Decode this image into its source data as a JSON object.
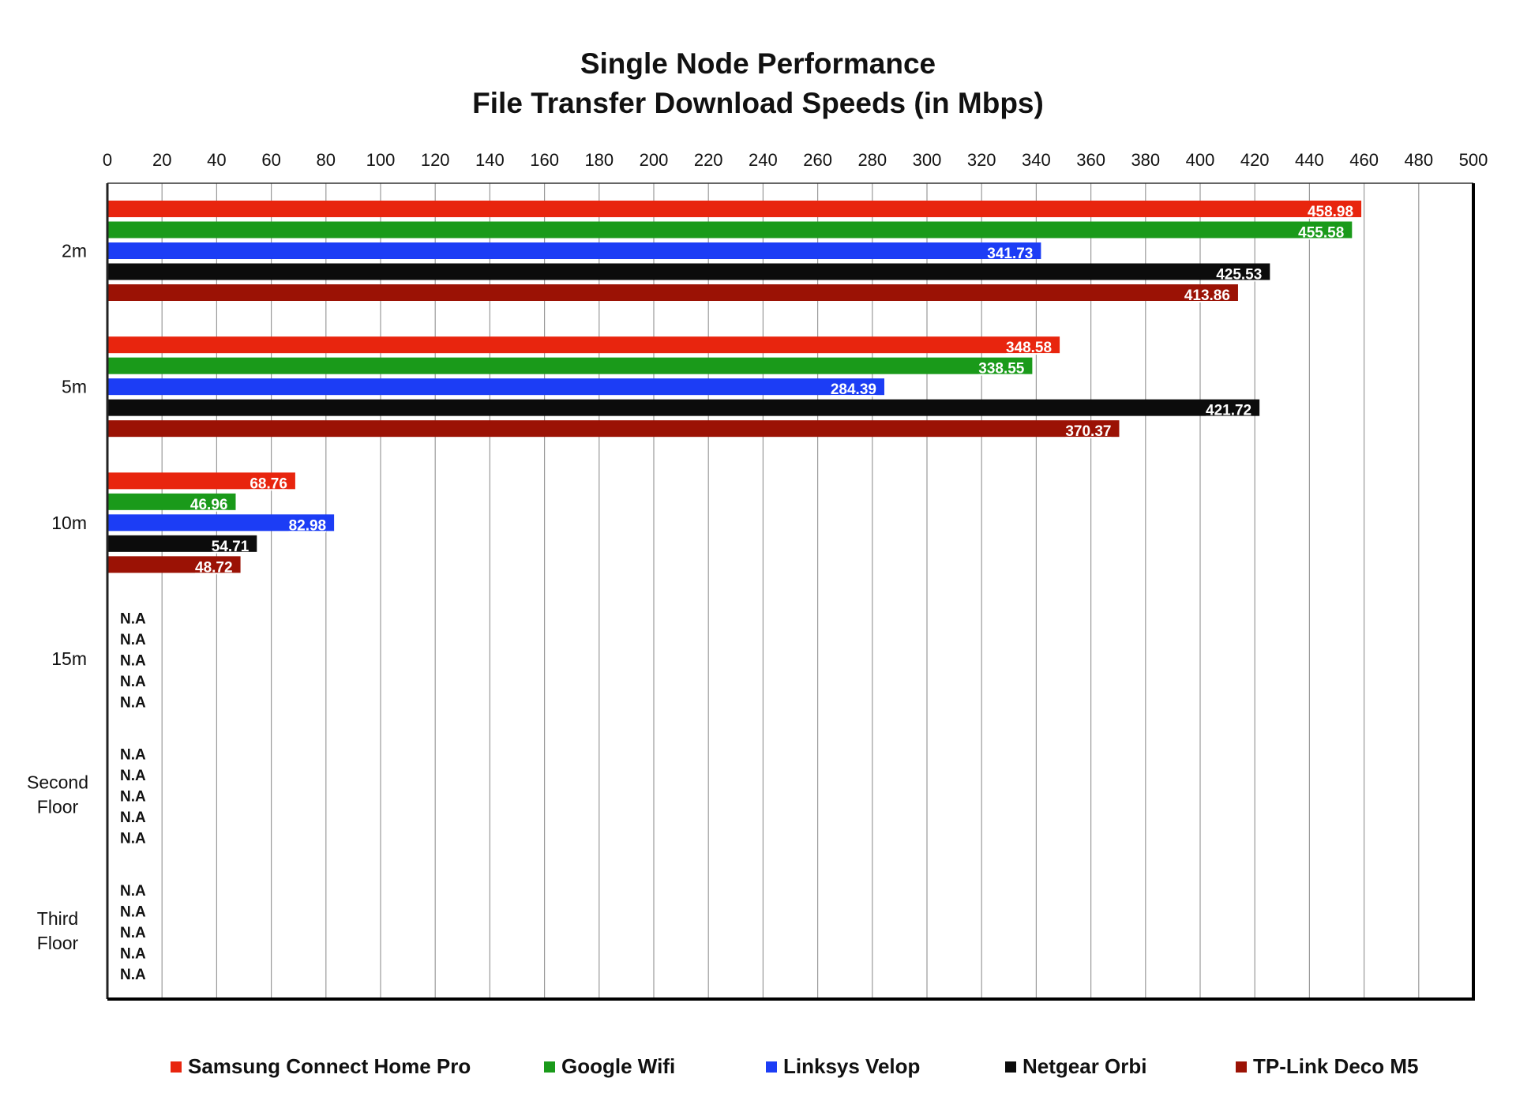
{
  "chart_data": {
    "type": "bar",
    "orientation": "horizontal",
    "title": "Single Node Performance",
    "subtitle": "File Transfer Download Speeds (in Mbps)",
    "xlim": [
      0,
      500
    ],
    "x_ticks": [
      "0",
      "20",
      "40",
      "60",
      "80",
      "100",
      "120",
      "140",
      "160",
      "180",
      "200",
      "220",
      "240",
      "260",
      "280",
      "300",
      "320",
      "340",
      "360",
      "380",
      "400",
      "420",
      "440",
      "460",
      "480",
      "500"
    ],
    "grid": "vertical",
    "legend_position": "bottom",
    "categories": [
      "2m",
      "5m",
      "10m",
      "15m",
      "Second Floor",
      "Third Floor"
    ],
    "category_labels": [
      [
        "2m"
      ],
      [
        "5m"
      ],
      [
        "10m"
      ],
      [
        "15m"
      ],
      [
        "Second",
        "Floor"
      ],
      [
        "Third",
        "Floor"
      ]
    ],
    "missing_label": "N.A",
    "series": [
      {
        "name": "Samsung Connect Home Pro",
        "color": "#e8250e",
        "values": [
          458.98,
          348.58,
          68.76,
          null,
          null,
          null
        ],
        "labels": [
          "458.98",
          "348.58",
          "68.76",
          "N.A",
          "N.A",
          "N.A"
        ]
      },
      {
        "name": "Google Wifi",
        "color": "#1a9a1a",
        "values": [
          455.58,
          338.55,
          46.96,
          null,
          null,
          null
        ],
        "labels": [
          "455.58",
          "338.55",
          "46.96",
          "N.A",
          "N.A",
          "N.A"
        ]
      },
      {
        "name": "Linksys Velop",
        "color": "#1c3df5",
        "values": [
          341.73,
          284.39,
          82.98,
          null,
          null,
          null
        ],
        "labels": [
          "341.73",
          "284.39",
          "82.98",
          "N.A",
          "N.A",
          "N.A"
        ]
      },
      {
        "name": "Netgear Orbi",
        "color": "#0c0c0c",
        "values": [
          425.53,
          421.72,
          54.71,
          null,
          null,
          null
        ],
        "labels": [
          "425.53",
          "421.72",
          "54.71",
          "N.A",
          "N.A",
          "N.A"
        ]
      },
      {
        "name": "TP-Link Deco M5",
        "color": "#9b1205",
        "values": [
          413.86,
          370.37,
          48.72,
          null,
          null,
          null
        ],
        "labels": [
          "413.86",
          "370.37",
          "48.72",
          "N.A",
          "N.A",
          "N.A"
        ]
      }
    ]
  }
}
